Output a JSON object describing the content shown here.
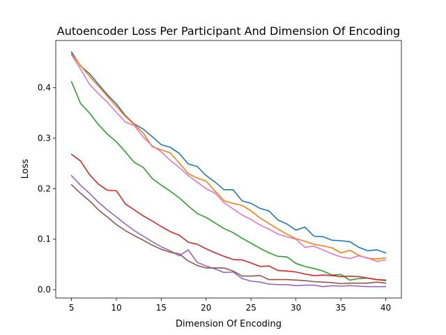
{
  "chart_data": {
    "type": "line",
    "title": "Autoencoder Loss Per Participant And Dimension Of Encoding",
    "xlabel": "Dimension Of Encoding",
    "ylabel": "Loss",
    "xlim": [
      3.25,
      41.75
    ],
    "ylim": [
      -0.0165,
      0.4935
    ],
    "xticks": [
      5,
      10,
      15,
      20,
      25,
      30,
      35,
      40
    ],
    "xtick_labels": [
      "5",
      "10",
      "15",
      "20",
      "25",
      "30",
      "35",
      "40"
    ],
    "yticks": [
      0.0,
      0.1,
      0.2,
      0.3,
      0.4
    ],
    "ytick_labels": [
      "0.0",
      "0.1",
      "0.2",
      "0.3",
      "0.4"
    ],
    "grid": false,
    "legend": false,
    "x": [
      5,
      6,
      7,
      8,
      9,
      10,
      11,
      12,
      13,
      14,
      15,
      16,
      17,
      18,
      19,
      20,
      21,
      22,
      23,
      24,
      25,
      26,
      27,
      28,
      29,
      30,
      31,
      32,
      33,
      34,
      35,
      36,
      37,
      38,
      39,
      40
    ],
    "series": [
      {
        "color": "#1f77b4",
        "values": [
          0.471,
          0.443,
          0.428,
          0.407,
          0.386,
          0.368,
          0.345,
          0.328,
          0.318,
          0.303,
          0.287,
          0.282,
          0.27,
          0.249,
          0.244,
          0.226,
          0.213,
          0.198,
          0.198,
          0.176,
          0.171,
          0.161,
          0.156,
          0.138,
          0.13,
          0.118,
          0.124,
          0.106,
          0.105,
          0.098,
          0.097,
          0.095,
          0.084,
          0.077,
          0.079,
          0.073
        ]
      },
      {
        "color": "#ff7f0e",
        "values": [
          0.467,
          0.444,
          0.423,
          0.403,
          0.383,
          0.363,
          0.343,
          0.327,
          0.31,
          0.283,
          0.277,
          0.271,
          0.251,
          0.23,
          0.221,
          0.215,
          0.195,
          0.176,
          0.171,
          0.167,
          0.156,
          0.142,
          0.131,
          0.12,
          0.11,
          0.101,
          0.096,
          0.09,
          0.087,
          0.083,
          0.073,
          0.078,
          0.068,
          0.062,
          0.061,
          0.063
        ]
      },
      {
        "color": "#2ca02c",
        "values": [
          0.412,
          0.369,
          0.35,
          0.327,
          0.308,
          0.293,
          0.273,
          0.252,
          0.242,
          0.22,
          0.207,
          0.195,
          0.182,
          0.166,
          0.151,
          0.143,
          0.132,
          0.121,
          0.113,
          0.102,
          0.092,
          0.082,
          0.073,
          0.066,
          0.065,
          0.052,
          0.046,
          0.042,
          0.037,
          0.029,
          0.03,
          0.019,
          0.022,
          0.023,
          0.02,
          0.018
        ]
      },
      {
        "color": "#d62728",
        "values": [
          0.268,
          0.255,
          0.228,
          0.209,
          0.197,
          0.196,
          0.17,
          0.158,
          0.146,
          0.136,
          0.125,
          0.115,
          0.108,
          0.094,
          0.09,
          0.081,
          0.073,
          0.066,
          0.06,
          0.059,
          0.053,
          0.046,
          0.047,
          0.038,
          0.037,
          0.035,
          0.031,
          0.028,
          0.029,
          0.028,
          0.026,
          0.027,
          0.026,
          0.023,
          0.02,
          0.019
        ]
      },
      {
        "color": "#9467bd",
        "values": [
          0.226,
          0.207,
          0.191,
          0.173,
          0.158,
          0.144,
          0.13,
          0.117,
          0.106,
          0.095,
          0.085,
          0.077,
          0.067,
          0.079,
          0.054,
          0.047,
          0.041,
          0.034,
          0.035,
          0.022,
          0.017,
          0.015,
          0.011,
          0.01,
          0.01,
          0.008,
          0.009,
          0.009,
          0.006,
          0.008,
          0.007,
          0.008,
          0.007,
          0.006,
          0.006,
          0.006
        ]
      },
      {
        "color": "#8c564b",
        "values": [
          0.208,
          0.191,
          0.176,
          0.158,
          0.144,
          0.129,
          0.117,
          0.107,
          0.098,
          0.088,
          0.08,
          0.074,
          0.071,
          0.057,
          0.048,
          0.043,
          0.043,
          0.043,
          0.037,
          0.027,
          0.027,
          0.028,
          0.02,
          0.02,
          0.02,
          0.019,
          0.018,
          0.016,
          0.015,
          0.014,
          0.012,
          0.013,
          0.013,
          0.013,
          0.015,
          0.013
        ]
      },
      {
        "color": "#e377c2",
        "values": [
          0.465,
          0.437,
          0.407,
          0.388,
          0.371,
          0.351,
          0.332,
          0.325,
          0.302,
          0.285,
          0.273,
          0.256,
          0.242,
          0.226,
          0.213,
          0.2,
          0.191,
          0.172,
          0.16,
          0.148,
          0.139,
          0.128,
          0.12,
          0.11,
          0.105,
          0.1,
          0.084,
          0.086,
          0.079,
          0.071,
          0.065,
          0.062,
          0.067,
          0.063,
          0.056,
          0.059
        ]
      }
    ]
  }
}
